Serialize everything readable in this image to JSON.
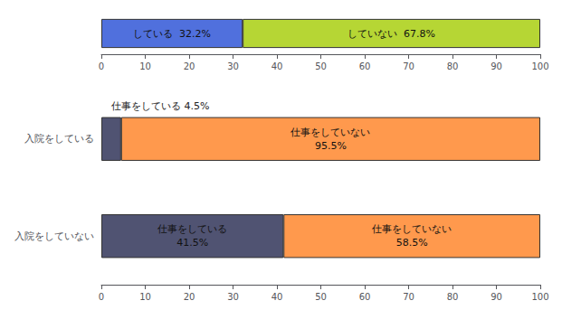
{
  "chart_data": [
    {
      "type": "bar",
      "orientation": "horizontal",
      "stacked": true,
      "grid": false,
      "data_labels": true,
      "categories": [
        null
      ],
      "series": [
        {
          "values": [
            32.2
          ],
          "value_labels": [
            "している  32.2%"
          ]
        },
        {
          "values": [
            67.8
          ],
          "value_labels": [
            "していない  67.8%"
          ]
        }
      ],
      "xlim": [
        0,
        100
      ],
      "xticks": [
        0,
        10,
        20,
        30,
        40,
        50,
        60,
        70,
        80,
        90,
        100
      ]
    },
    {
      "type": "bar",
      "orientation": "horizontal",
      "stacked": true,
      "grid": false,
      "data_labels": true,
      "categories": [
        "入院をしている",
        "入院をしていない"
      ],
      "series": [
        {
          "values": [
            4.5,
            41.5
          ],
          "value_labels": [
            "仕事をしている 4.5%",
            "仕事をしている\n41.5%"
          ]
        },
        {
          "values": [
            95.5,
            58.5
          ],
          "value_labels": [
            "仕事をしていない\n95.5%",
            "仕事をしていない\n58.5%"
          ]
        }
      ],
      "xlim": [
        0,
        100
      ],
      "xticks": [
        0,
        10,
        20,
        30,
        40,
        50,
        60,
        70,
        80,
        90,
        100
      ]
    }
  ]
}
